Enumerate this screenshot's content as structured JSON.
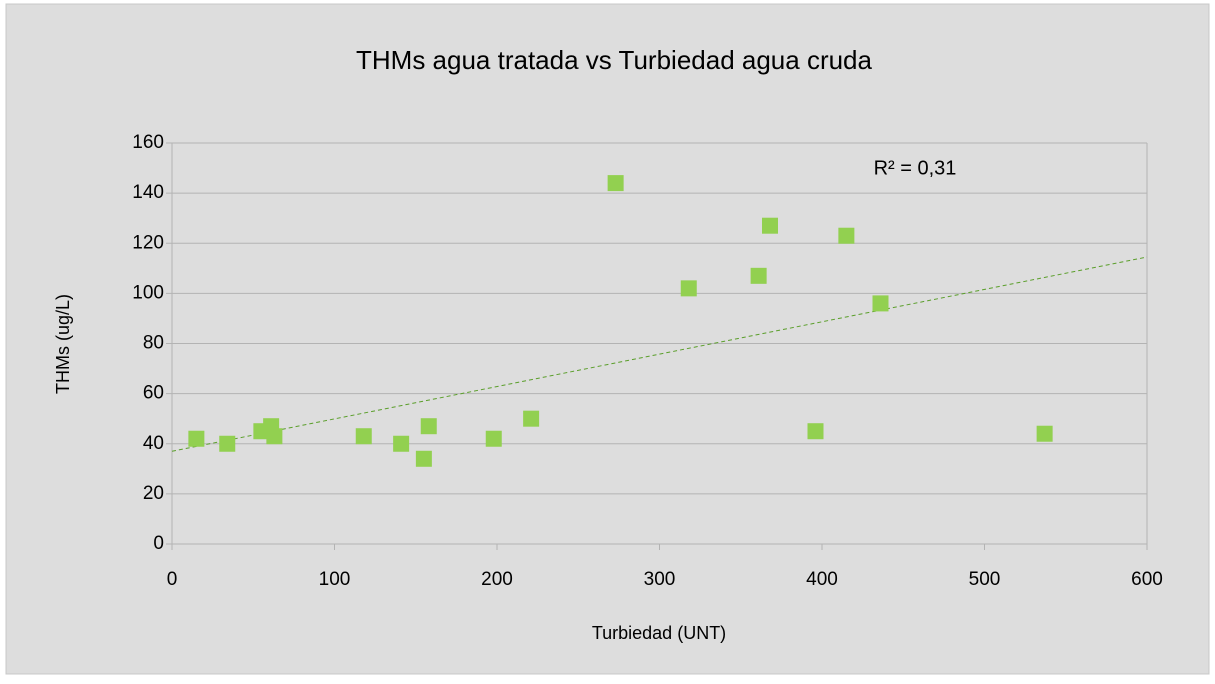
{
  "chart_data": {
    "type": "scatter",
    "title": "THMs agua tratada vs Turbiedad agua cruda",
    "x_label": "Turbiedad (UNT)",
    "y_label": "THMs (ug/L)",
    "annotation": "R² = 0,31",
    "series": [
      {
        "name": "THMs",
        "color": "#92d050",
        "x": [
          15,
          34,
          55,
          61,
          63,
          118,
          141,
          155,
          158,
          198,
          221,
          273,
          318,
          361,
          368,
          396,
          415,
          436,
          537
        ],
        "values": [
          42,
          40,
          45,
          47,
          43,
          43,
          40,
          34,
          47,
          42,
          50,
          144,
          102,
          107,
          127,
          45,
          123,
          96,
          44
        ]
      }
    ],
    "trendline": {
      "color": "#5a9e2a",
      "x": [
        0,
        600
      ],
      "values": [
        37,
        114.5
      ]
    },
    "xlim": [
      0,
      600
    ],
    "xticks": [
      0,
      100,
      200,
      300,
      400,
      500,
      600
    ],
    "ylim": [
      0,
      160
    ],
    "yticks": [
      0,
      20,
      40,
      60,
      80,
      100,
      120,
      140,
      160
    ],
    "grid": true
  }
}
